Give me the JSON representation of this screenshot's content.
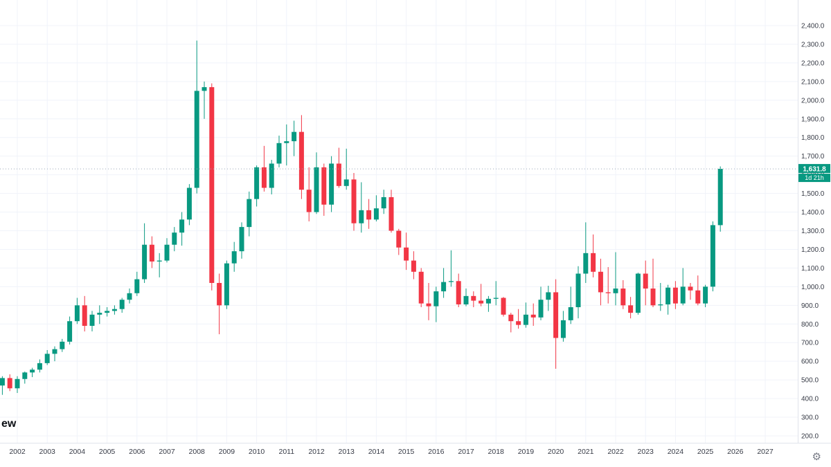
{
  "chart": {
    "watermark": "ew",
    "icons": {
      "settings": "⚙"
    },
    "price_label": {
      "price": "1,631.8",
      "countdown": "1d 21h"
    },
    "colors": {
      "up": "#089981",
      "down": "#f23645",
      "price_label_bg": "#089981",
      "countdown_bg": "#089981",
      "price_label_text": "#ffffff",
      "grid": "#f0f3fa",
      "axis_text": "#363a45",
      "price_line": "#9aa7b8",
      "axis_border": "#e0e3eb"
    },
    "y_axis_labels": [
      "2,400.0",
      "2,300.0",
      "2,200.0",
      "2,100.0",
      "2,000.0",
      "1,900.0",
      "1,800.0",
      "1,700.0",
      "1,600.0",
      "1,500.0",
      "1,400.0",
      "1,300.0",
      "1,200.0",
      "1,100.0",
      "1,000.0",
      "900.0",
      "800.0",
      "700.0",
      "600.0",
      "500.0",
      "400.0",
      "300.0",
      "200.0"
    ],
    "x_axis_labels": [
      "2002",
      "2003",
      "2004",
      "2005",
      "2006",
      "2007",
      "2008",
      "2009",
      "2010",
      "2011",
      "2012",
      "2013",
      "2014",
      "2015",
      "2016",
      "2017",
      "2018",
      "2019",
      "2020",
      "2021",
      "2022",
      "2023",
      "2024",
      "2025",
      "2026",
      "2027"
    ]
  },
  "chart_data": {
    "type": "candlestick",
    "period": "quarterly",
    "start": "2001-Q3",
    "current_price": 1631.8,
    "ylim": [
      200,
      2400
    ],
    "x_years": [
      2002,
      2027
    ],
    "grid": true,
    "legend": false,
    "ohlc": [
      [
        470,
        520,
        420,
        510
      ],
      [
        510,
        530,
        440,
        455
      ],
      [
        455,
        520,
        430,
        505
      ],
      [
        505,
        545,
        480,
        540
      ],
      [
        540,
        565,
        515,
        555
      ],
      [
        555,
        610,
        540,
        590
      ],
      [
        590,
        660,
        580,
        640
      ],
      [
        640,
        680,
        600,
        665
      ],
      [
        665,
        720,
        650,
        705
      ],
      [
        705,
        840,
        690,
        815
      ],
      [
        815,
        940,
        800,
        900
      ],
      [
        900,
        950,
        760,
        790
      ],
      [
        790,
        870,
        760,
        850
      ],
      [
        850,
        900,
        800,
        860
      ],
      [
        860,
        890,
        840,
        870
      ],
      [
        870,
        900,
        850,
        880
      ],
      [
        880,
        940,
        860,
        930
      ],
      [
        930,
        990,
        910,
        965
      ],
      [
        965,
        1080,
        950,
        1040
      ],
      [
        1040,
        1340,
        1020,
        1225
      ],
      [
        1225,
        1270,
        1100,
        1135
      ],
      [
        1135,
        1180,
        1050,
        1140
      ],
      [
        1140,
        1260,
        1130,
        1225
      ],
      [
        1225,
        1320,
        1190,
        1290
      ],
      [
        1290,
        1400,
        1220,
        1360
      ],
      [
        1360,
        1550,
        1330,
        1530
      ],
      [
        1530,
        2320,
        1500,
        2050
      ],
      [
        2050,
        2100,
        1900,
        2070
      ],
      [
        2070,
        2090,
        980,
        1020
      ],
      [
        1020,
        1070,
        745,
        900
      ],
      [
        900,
        1140,
        880,
        1125
      ],
      [
        1125,
        1240,
        1080,
        1190
      ],
      [
        1190,
        1345,
        1150,
        1320
      ],
      [
        1320,
        1510,
        1270,
        1470
      ],
      [
        1470,
        1650,
        1430,
        1640
      ],
      [
        1640,
        1755,
        1510,
        1530
      ],
      [
        1530,
        1680,
        1495,
        1660
      ],
      [
        1660,
        1810,
        1640,
        1770
      ],
      [
        1770,
        1870,
        1650,
        1780
      ],
      [
        1780,
        1890,
        1700,
        1830
      ],
      [
        1830,
        1920,
        1470,
        1520
      ],
      [
        1520,
        1640,
        1350,
        1400
      ],
      [
        1400,
        1720,
        1390,
        1640
      ],
      [
        1640,
        1660,
        1380,
        1440
      ],
      [
        1440,
        1700,
        1400,
        1660
      ],
      [
        1660,
        1745,
        1530,
        1540
      ],
      [
        1540,
        1740,
        1520,
        1575
      ],
      [
        1575,
        1610,
        1300,
        1340
      ],
      [
        1340,
        1560,
        1290,
        1410
      ],
      [
        1410,
        1470,
        1310,
        1360
      ],
      [
        1360,
        1490,
        1350,
        1420
      ],
      [
        1420,
        1520,
        1390,
        1480
      ],
      [
        1480,
        1520,
        1290,
        1300
      ],
      [
        1300,
        1310,
        1170,
        1210
      ],
      [
        1210,
        1290,
        1090,
        1140
      ],
      [
        1140,
        1190,
        1040,
        1080
      ],
      [
        1080,
        1100,
        890,
        910
      ],
      [
        910,
        1020,
        820,
        895
      ],
      [
        895,
        1000,
        810,
        975
      ],
      [
        975,
        1100,
        940,
        1025
      ],
      [
        1025,
        1195,
        1000,
        1030
      ],
      [
        1030,
        1070,
        890,
        905
      ],
      [
        905,
        990,
        895,
        950
      ],
      [
        950,
        975,
        890,
        925
      ],
      [
        925,
        1015,
        895,
        910
      ],
      [
        910,
        950,
        865,
        935
      ],
      [
        935,
        1030,
        900,
        940
      ],
      [
        940,
        945,
        840,
        850
      ],
      [
        850,
        860,
        755,
        815
      ],
      [
        815,
        880,
        775,
        795
      ],
      [
        795,
        915,
        780,
        850
      ],
      [
        850,
        910,
        790,
        835
      ],
      [
        835,
        1000,
        820,
        930
      ],
      [
        930,
        1005,
        870,
        970
      ],
      [
        970,
        1040,
        560,
        725
      ],
      [
        725,
        870,
        705,
        820
      ],
      [
        820,
        1000,
        800,
        890
      ],
      [
        890,
        1110,
        830,
        1070
      ],
      [
        1070,
        1345,
        1020,
        1180
      ],
      [
        1180,
        1280,
        1050,
        1080
      ],
      [
        1080,
        1150,
        900,
        970
      ],
      [
        970,
        1105,
        910,
        965
      ],
      [
        965,
        1185,
        900,
        990
      ],
      [
        990,
        1035,
        880,
        900
      ],
      [
        900,
        945,
        830,
        860
      ],
      [
        860,
        1075,
        850,
        1070
      ],
      [
        1070,
        1140,
        900,
        990
      ],
      [
        990,
        1150,
        890,
        900
      ],
      [
        900,
        1020,
        870,
        905
      ],
      [
        905,
        1010,
        850,
        995
      ],
      [
        995,
        1030,
        880,
        910
      ],
      [
        910,
        1100,
        900,
        1000
      ],
      [
        1000,
        1020,
        930,
        980
      ],
      [
        980,
        1060,
        900,
        910
      ],
      [
        910,
        1010,
        890,
        1000
      ],
      [
        1000,
        1350,
        975,
        1330
      ],
      [
        1330,
        1645,
        1295,
        1631.8
      ]
    ]
  }
}
